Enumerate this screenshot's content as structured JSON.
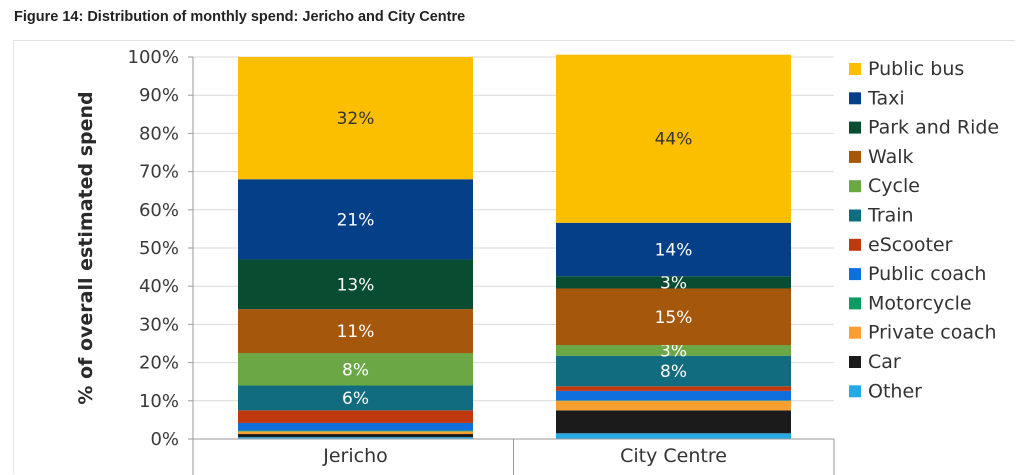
{
  "figure_title": "Figure 14: Distribution of monthly spend: Jericho and City Centre",
  "chart_data": {
    "type": "bar",
    "stacked": true,
    "title": "Figure 14: Distribution of monthly spend: Jericho and City Centre",
    "xlabel": "",
    "ylabel": "% of overall estimated spend",
    "ylim": [
      0,
      100
    ],
    "yticks": [
      "0%",
      "10%",
      "20%",
      "30%",
      "40%",
      "50%",
      "60%",
      "70%",
      "80%",
      "90%",
      "100%"
    ],
    "categories": [
      "Jericho",
      "City Centre"
    ],
    "legend_position": "right",
    "series": [
      {
        "name": "Other",
        "color": "#27a9e1",
        "values": [
          0.5,
          1.5
        ],
        "labels": [
          "",
          ""
        ]
      },
      {
        "name": "Car",
        "color": "#1b1b1b",
        "values": [
          0.8,
          6
        ],
        "labels": [
          "",
          ""
        ]
      },
      {
        "name": "Private coach",
        "color": "#f7a030",
        "values": [
          0.7,
          2.5
        ],
        "labels": [
          "",
          ""
        ]
      },
      {
        "name": "Motorcycle",
        "color": "#0e9a60",
        "values": [
          0.2,
          0.1
        ],
        "labels": [
          "",
          ""
        ]
      },
      {
        "name": "Public coach",
        "color": "#0f6fdc",
        "values": [
          2,
          2.5
        ],
        "labels": [
          "",
          ""
        ]
      },
      {
        "name": "eScooter",
        "color": "#c0390e",
        "values": [
          3.3,
          1.2
        ],
        "labels": [
          "",
          ""
        ]
      },
      {
        "name": "Train",
        "color": "#126c7f",
        "values": [
          6.5,
          8
        ],
        "labels": [
          "6%",
          "8%"
        ]
      },
      {
        "name": "Cycle",
        "color": "#6ba744",
        "values": [
          8.5,
          2.8
        ],
        "labels": [
          "8%",
          "3%"
        ]
      },
      {
        "name": "Walk",
        "color": "#a5570c",
        "values": [
          11.5,
          14.8
        ],
        "labels": [
          "11%",
          "15%"
        ]
      },
      {
        "name": "Park and Ride",
        "color": "#084d32",
        "values": [
          13,
          3.2
        ],
        "labels": [
          "13%",
          "3%"
        ]
      },
      {
        "name": "Taxi",
        "color": "#053f88",
        "values": [
          21,
          14
        ],
        "labels": [
          "21%",
          "14%"
        ]
      },
      {
        "name": "Public bus",
        "color": "#fbbf00",
        "values": [
          32,
          44
        ],
        "labels": [
          "32%",
          "44%"
        ]
      }
    ],
    "legend_order": [
      "Public bus",
      "Taxi",
      "Park and Ride",
      "Walk",
      "Cycle",
      "Train",
      "eScooter",
      "Public coach",
      "Motorcycle",
      "Private coach",
      "Car",
      "Other"
    ]
  }
}
